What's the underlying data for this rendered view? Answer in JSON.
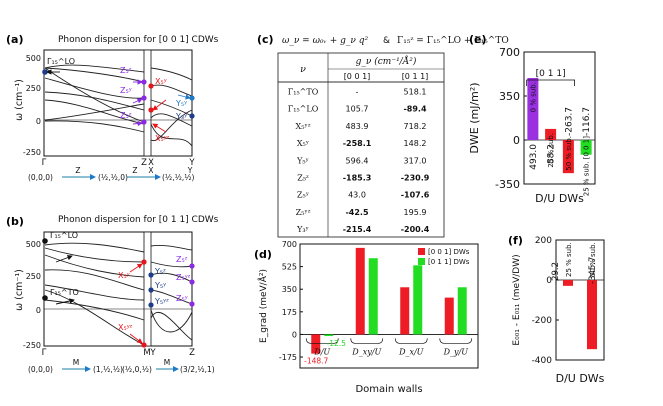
{
  "panels": {
    "a": {
      "letter": "(a)",
      "title": "Phonon dispersion for [0 0 1] CDWs",
      "ylabel": "ω (cm⁻¹)",
      "yticks": [
        "-250",
        "0",
        "250",
        "500"
      ],
      "gamma_label": "Γ₁₅^LO",
      "point_labels": [
        "Z₅ᶻ",
        "Z₅ʸ",
        "Z₅ᶻ",
        "X₅ʸ",
        "X₅ᶻ",
        "X₅ʸᶻ",
        "Y₅ʸ",
        "Y₅ᶻ",
        "Y₃ʸ"
      ],
      "hs_points": [
        "Γ",
        "Z",
        "X",
        "Y"
      ],
      "path_line": [
        "(0,0,0)",
        "Z",
        "(½,½,0)",
        "Z",
        "X",
        "(½,½,½)",
        "Y"
      ]
    },
    "b": {
      "letter": "(b)",
      "title": "Phonon dispersion for [0 1 1] CDWs",
      "ylabel": "ω (cm⁻¹)",
      "yticks": [
        "-250",
        "0",
        "250",
        "500"
      ],
      "gamma_labels": [
        "Γ₁₅^LO",
        "Γ₁₅^TO"
      ],
      "point_labels": [
        "X₅ʸ",
        "X₅ʸᶻ",
        "Y₅ᶻ",
        "Y₅ʸ",
        "Y₅ʸᶻ",
        "Z₅ᶻ",
        "Z₅ʸᶻ",
        "Z₅ʸ"
      ],
      "hs_points": [
        "M",
        "Y",
        "Z"
      ],
      "path_line": [
        "(0,0,0)",
        "M",
        "(1,½,½)",
        "(½,0,½)",
        "M",
        "(3/2,½,1)"
      ]
    },
    "c": {
      "letter": "(c)",
      "formula_left": "ω_ν = ω₀ᵥ + g_ν q²",
      "formula_sep": "&",
      "formula_right": "Γ₁₅ᶻ = Γ₁₅^LO + Γ₁₅^TO",
      "header_nu": "ν",
      "header_g": "g_ν  (cm⁻¹/Å²)",
      "subheaders": [
        "[0 0 1]",
        "[0 1 1]"
      ],
      "rows": [
        {
          "label": "Γ₁₅^TO",
          "c1": "-",
          "c2": "518.1",
          "b1": false,
          "b2": false
        },
        {
          "label": "Γ₁₅^LO",
          "c1": "105.7",
          "c2": "-89.4",
          "b1": false,
          "b2": true
        },
        {
          "label": "X₅ʸᶻ",
          "c1": "483.9",
          "c2": "718.2",
          "b1": false,
          "b2": false
        },
        {
          "label": "X₅ʸ",
          "c1": "-258.1",
          "c2": "148.2",
          "b1": true,
          "b2": false
        },
        {
          "label": "Y₅ʸ",
          "c1": "596.4",
          "c2": "317.0",
          "b1": false,
          "b2": false
        },
        {
          "label": "Z₅ᶻ",
          "c1": "-185.3",
          "c2": "-230.9",
          "b1": true,
          "b2": true
        },
        {
          "label": "Z₅ʸ",
          "c1": "43.0",
          "c2": "-107.6",
          "b1": false,
          "b2": true
        },
        {
          "label": "Z₅ʸᶻ",
          "c1": "-42.5",
          "c2": "195.9",
          "b1": true,
          "b2": false
        },
        {
          "label": "Y₃ʸ",
          "c1": "-215.4",
          "c2": "-200.4",
          "b1": true,
          "b2": true
        }
      ]
    },
    "d": {
      "letter": "(d)"
    },
    "e": {
      "letter": "(e)",
      "bracket_label": "[0 1 1]"
    },
    "f": {
      "letter": "(f)"
    }
  },
  "chart_data": [
    {
      "id": "d",
      "type": "bar",
      "xlabel": "Domain walls",
      "ylabel": "E_grad (meV/Å²)",
      "categories": [
        "D/U",
        "D_xy/U",
        "D_x/U",
        "D_y/U"
      ],
      "series": [
        {
          "name": "[0 0 1] DWs",
          "color": "#ee1c24",
          "values": [
            -148.7,
            670,
            365,
            285
          ]
        },
        {
          "name": "[0 1 1] DWs",
          "color": "#22dd22",
          "values": [
            -12.5,
            590,
            535,
            365
          ]
        }
      ],
      "value_labels": [
        "-148.7",
        "-12.5"
      ],
      "yticks": [
        -175,
        0,
        175,
        350,
        525,
        700
      ],
      "ylim": [
        -260,
        700
      ],
      "legend": "top-right"
    },
    {
      "id": "e",
      "type": "bar",
      "xlabel": "D/U DWs",
      "ylabel": "DWE (mJ/m²)",
      "categories": [
        "0 % sub.",
        "25 % sub.",
        "50 % sub.",
        "25 % sub. [0 0 1]"
      ],
      "values": [
        493.0,
        88.2,
        -263.7,
        -116.7
      ],
      "value_labels": [
        "493.0",
        "88.2",
        "-263.7",
        "-116.7"
      ],
      "colors": [
        "#9b30e0",
        "#ee1c24",
        "#ee1c24",
        "#22dd22"
      ],
      "yticks": [
        -350,
        0,
        350,
        700
      ],
      "ylim": [
        -350,
        700
      ]
    },
    {
      "id": "f",
      "type": "bar",
      "xlabel": "D/U DWs",
      "ylabel": "E₀₀₁ - E₀₁₁ (meV/DW)",
      "categories": [
        "25 % sub.",
        "50 % sub."
      ],
      "values": [
        -29.2,
        -345.7
      ],
      "value_labels": [
        "-29.2",
        "-345.7"
      ],
      "colors": [
        "#ee1c24",
        "#ee1c24"
      ],
      "yticks": [
        -400,
        -200,
        0,
        200
      ],
      "ylim": [
        -400,
        200
      ]
    }
  ]
}
